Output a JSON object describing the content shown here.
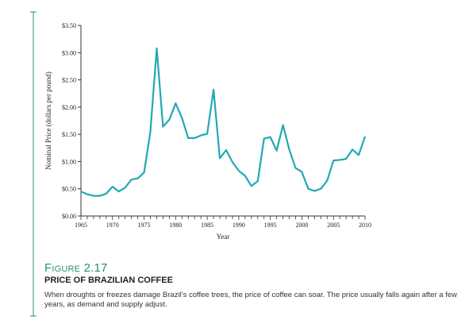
{
  "colors": {
    "accent": "#2a8f73",
    "line": "#22a8b4",
    "axis": "#333333"
  },
  "chart_data": {
    "type": "line",
    "ylabel": "Nominal Price (dollars per pound)",
    "xlabel": "Year",
    "ylim": [
      0,
      3.5
    ],
    "xlim": [
      1965,
      2010
    ],
    "y_tick_labels": [
      "$0.00",
      "$0.50",
      "$1.00",
      "$1.50",
      "$2.00",
      "$2.50",
      "$3.00",
      "$3.50"
    ],
    "x_tick_labels": [
      "1965",
      "1970",
      "1975",
      "1980",
      "1985",
      "1990",
      "1995",
      "2000",
      "2005",
      "2010"
    ],
    "grid": false,
    "series": [
      {
        "x": [
          1965,
          1966,
          1967,
          1968,
          1969,
          1970,
          1971,
          1972,
          1973,
          1974,
          1975,
          1976,
          1977,
          1978,
          1979,
          1980,
          1981,
          1982,
          1983,
          1984,
          1985,
          1986,
          1987,
          1988,
          1989,
          1990,
          1991,
          1992,
          1993,
          1994,
          1995,
          1996,
          1997,
          1998,
          1999,
          2000,
          2001,
          2002,
          2003,
          2004,
          2005,
          2006,
          2007,
          2008,
          2009,
          2010
        ],
        "y": [
          0.45,
          0.4,
          0.37,
          0.37,
          0.41,
          0.54,
          0.45,
          0.52,
          0.67,
          0.69,
          0.8,
          1.55,
          3.08,
          1.64,
          1.77,
          2.07,
          1.8,
          1.43,
          1.43,
          1.48,
          1.51,
          2.32,
          1.06,
          1.21,
          0.99,
          0.83,
          0.74,
          0.55,
          0.64,
          1.42,
          1.45,
          1.2,
          1.67,
          1.22,
          0.88,
          0.81,
          0.5,
          0.46,
          0.5,
          0.65,
          1.02,
          1.03,
          1.05,
          1.22,
          1.12,
          1.46
        ]
      }
    ]
  },
  "caption": {
    "number": "Figure 2.17",
    "title": "PRICE OF BRAZILIAN COFFEE",
    "text": "When droughts or freezes damage Brazil’s coffee trees, the price of coffee can soar. The price usually falls again after a few years, as demand and supply adjust."
  }
}
